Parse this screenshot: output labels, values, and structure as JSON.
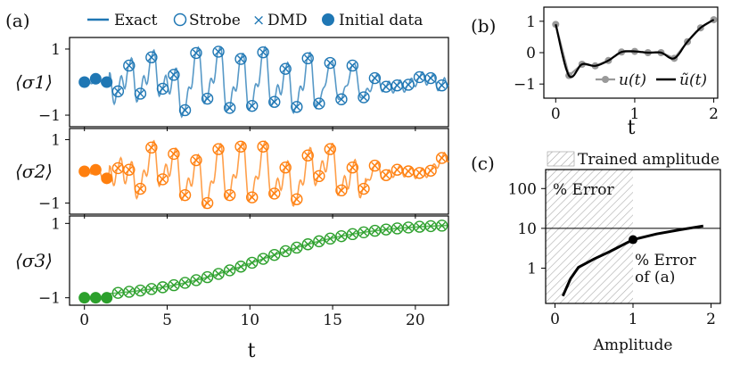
{
  "panel_labels": {
    "a": "(a)",
    "b": "(b)",
    "c": "(c)"
  },
  "colors": {
    "sigma1": "#1f77b4",
    "sigma2": "#ff7f0e",
    "sigma3": "#2ca02c",
    "exact_alpha": 0.75
  },
  "chart_data": [
    {
      "id": "a",
      "type": "line",
      "legend": {
        "location": "top",
        "entries": [
          "Exact",
          "Strobe",
          "DMD",
          "Initial data"
        ]
      },
      "xlabel": "t",
      "xlim": [
        -0.9,
        22
      ],
      "xticks": [
        0,
        5,
        10,
        15,
        20
      ],
      "subplots": [
        {
          "ylabel": "⟨σ1⟩",
          "ylim": [
            -1.35,
            1.35
          ],
          "yticks": [
            1,
            -1
          ],
          "ytick_labels": [
            "1",
            "−1"
          ],
          "exact_y": "1-oscillating signal",
          "initial": {
            "t": [
              0,
              0.68,
              1.35
            ],
            "y": [
              0.0,
              0.1,
              0.0
            ]
          },
          "strobe": {
            "t": [
              2.03,
              2.7,
              3.38,
              4.05,
              4.73,
              5.4,
              6.08,
              6.75,
              7.43,
              8.1,
              8.78,
              9.45,
              10.13,
              10.8,
              11.48,
              12.15,
              12.83,
              13.5,
              14.18,
              14.85,
              15.53,
              16.2,
              16.88,
              17.55,
              18.23,
              18.9,
              19.58,
              20.25,
              20.93,
              21.6
            ],
            "y": [
              -0.28,
              0.5,
              -0.35,
              0.75,
              -0.2,
              0.22,
              -0.85,
              0.88,
              -0.5,
              0.92,
              -0.78,
              0.7,
              -0.72,
              0.9,
              -0.6,
              0.4,
              -0.75,
              0.72,
              -0.65,
              0.58,
              -0.52,
              0.5,
              -0.46,
              0.12,
              -0.14,
              -0.1,
              -0.08,
              0.15,
              0.12,
              -0.1
            ]
          }
        },
        {
          "ylabel": "⟨σ2⟩",
          "ylim": [
            -1.35,
            1.35
          ],
          "yticks": [
            1,
            -1
          ],
          "ytick_labels": [
            "1",
            "−1"
          ],
          "initial": {
            "t": [
              0,
              0.68,
              1.35
            ],
            "y": [
              0.0,
              0.05,
              -0.22
            ]
          },
          "strobe": {
            "t": [
              2.03,
              2.7,
              3.38,
              4.05,
              4.73,
              5.4,
              6.08,
              6.75,
              7.43,
              8.1,
              8.78,
              9.45,
              10.13,
              10.8,
              11.48,
              12.15,
              12.83,
              13.5,
              14.18,
              14.85,
              15.53,
              16.2,
              16.88,
              17.55,
              18.23,
              18.9,
              19.58,
              20.25,
              20.93,
              21.6
            ],
            "y": [
              0.1,
              0.05,
              -0.55,
              0.75,
              -0.25,
              0.55,
              -0.75,
              0.35,
              -1.0,
              0.7,
              -0.75,
              0.78,
              -0.82,
              0.78,
              -0.7,
              0.12,
              -0.88,
              0.5,
              -0.15,
              0.7,
              -0.6,
              0.12,
              -0.55,
              0.18,
              -0.12,
              0.05,
              0.0,
              -0.05,
              0.02,
              0.42
            ]
          }
        },
        {
          "ylabel": "⟨σ3⟩",
          "ylim": [
            -1.2,
            1.2
          ],
          "yticks": [
            1,
            -1
          ],
          "ytick_labels": [
            "1",
            "−1"
          ],
          "initial": {
            "t": [
              0,
              0.68,
              1.35
            ],
            "y": [
              -1.0,
              -1.0,
              -1.0
            ]
          },
          "strobe_rule": "sigmoid"
        }
      ]
    },
    {
      "id": "b",
      "type": "line",
      "xlabel": "t",
      "xlim": [
        -0.15,
        2.05
      ],
      "ylim": [
        -1.45,
        1.45
      ],
      "xticks": [
        0,
        1,
        2
      ],
      "yticks": [
        1,
        0,
        -1
      ],
      "ytick_labels": [
        "1",
        "0",
        "−1"
      ],
      "legend": {
        "location": "lower-right",
        "entries": [
          "u(t)",
          "ũ(t)"
        ]
      },
      "u_points": {
        "t": [
          0.0,
          0.167,
          0.333,
          0.5,
          0.667,
          0.833,
          1.0,
          1.167,
          1.333,
          1.5,
          1.667,
          1.833,
          2.0
        ],
        "y": [
          0.9,
          -0.73,
          -0.37,
          -0.42,
          -0.25,
          0.02,
          0.04,
          0.0,
          0.0,
          -0.18,
          0.35,
          0.79,
          1.05
        ]
      }
    },
    {
      "id": "c",
      "type": "line",
      "xlabel": "Amplitude",
      "xlim": [
        -0.12,
        2.12
      ],
      "ylog": true,
      "ylim": [
        0.13,
        300
      ],
      "xticks": [
        0,
        1,
        2
      ],
      "yticks": [
        1,
        10,
        100
      ],
      "ytick_labels": [
        "1",
        "10",
        "100"
      ],
      "hline": 10,
      "shaded": {
        "x": [
          -0.12,
          1.0
        ],
        "label": "Trained amplitude"
      },
      "labels": {
        "error": "% Error",
        "marker_line1": "% Error",
        "marker_line2": "of (a)"
      },
      "curve": {
        "x": [
          0.1,
          0.2,
          0.3,
          0.5,
          0.7,
          1.0,
          1.3,
          1.6,
          1.9
        ],
        "y": [
          0.2,
          0.55,
          1.05,
          1.7,
          2.6,
          5.2,
          7.2,
          9.2,
          11.5
        ]
      },
      "marker": {
        "x": 1.0,
        "y": 5.2
      }
    }
  ]
}
